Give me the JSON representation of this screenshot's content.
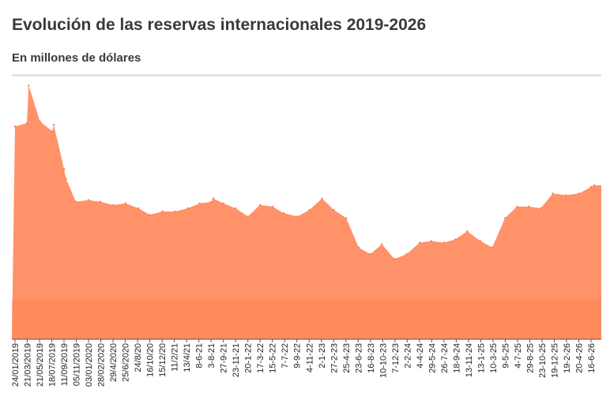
{
  "header": {
    "title": "Evolución de las reservas internacionales 2019-2026",
    "subtitle": "En millones de dólares"
  },
  "colors": {
    "area_fill": "#ff9268",
    "area_dark": "#ff7a45",
    "text": "#3a3a3a",
    "divider": "#e3e3e3"
  },
  "chart_data": {
    "type": "area",
    "title": "Evolución de las reservas internacionales 2019-2026",
    "subtitle": "En millones de dólares",
    "xlabel": "",
    "ylabel": "",
    "grid": false,
    "legend": "none",
    "ylim": [
      0,
      80000
    ],
    "x_ticks": [
      "24/01/2019",
      "21/03/2019",
      "21/05/2019",
      "18/07/2019",
      "11/09/2019",
      "05/11/2019",
      "03/01/2020",
      "28/02/2020",
      "29/4/2020",
      "25/6/2020",
      "24/8/20",
      "16/10/20",
      "15/12/20",
      "11/2/21",
      "13/4/21",
      "8-6-21",
      "3-8-21",
      "27-9-21",
      "23-11-21",
      "20-1-22",
      "17-3-22",
      "15-5-22",
      "7-7-22",
      "9-9-22",
      "4-11-22",
      "2-1-23",
      "27-2-23",
      "25-4-23",
      "23-6-23",
      "16-8-23",
      "10-10-23",
      "7-12-23",
      "2-2-24",
      "4-4-24",
      "29-5-24",
      "26-7-24",
      "18-9-24",
      "13-11-24",
      "13-1-25",
      "10-3-25",
      "9-5-25",
      "4-7-25",
      "29-8-25",
      "23-10-25",
      "19-12-25",
      "19-2-26",
      "20-4-26",
      "16-6-26"
    ],
    "x": [
      "24/01/2019",
      "21/03/2019",
      "29/03/2019",
      "21/05/2019",
      "18/07/2019",
      "25/07/2019",
      "11/09/2019",
      "20/09/2019",
      "05/11/2019",
      "03/01/2020",
      "28/02/2020",
      "29/4/2020",
      "25/6/2020",
      "24/8/20",
      "16/10/20",
      "15/12/20",
      "11/2/21",
      "13/4/21",
      "8-6-21",
      "3-8-21",
      "10-8-21",
      "27-9-21",
      "23-11-21",
      "20-1-22",
      "17-3-22",
      "15-5-22",
      "7-7-22",
      "9-9-22",
      "4-11-22",
      "2-1-23",
      "27-2-23",
      "25-4-23",
      "23-6-23",
      "16-8-23",
      "10-10-23",
      "7-12-23",
      "2-2-24",
      "4-4-24",
      "29-5-24",
      "26-7-24",
      "18-9-24",
      "13-11-24",
      "13-1-25",
      "10-3-25",
      "9-5-25",
      "4-7-25",
      "29-8-25",
      "23-10-25",
      "19-12-25",
      "19-2-26",
      "20-4-26",
      "16-6-26",
      "30-6-26"
    ],
    "series": [
      {
        "values": [
          65000,
          66000,
          77500,
          66500,
          63500,
          65500,
          52000,
          49000,
          42000,
          42500,
          42000,
          41000,
          41500,
          40000,
          38000,
          39000,
          39000,
          40000,
          41500,
          42000,
          43000,
          41500,
          40000,
          37500,
          41000,
          40500,
          38500,
          37500,
          39500,
          43000,
          39500,
          37000,
          28000,
          26000,
          29000,
          24500,
          26000,
          29500,
          30000,
          29500,
          30500,
          33000,
          30000,
          28000,
          37000,
          40500,
          40500,
          40000,
          44500,
          44000,
          44500,
          46500,
          47000
        ]
      }
    ]
  }
}
